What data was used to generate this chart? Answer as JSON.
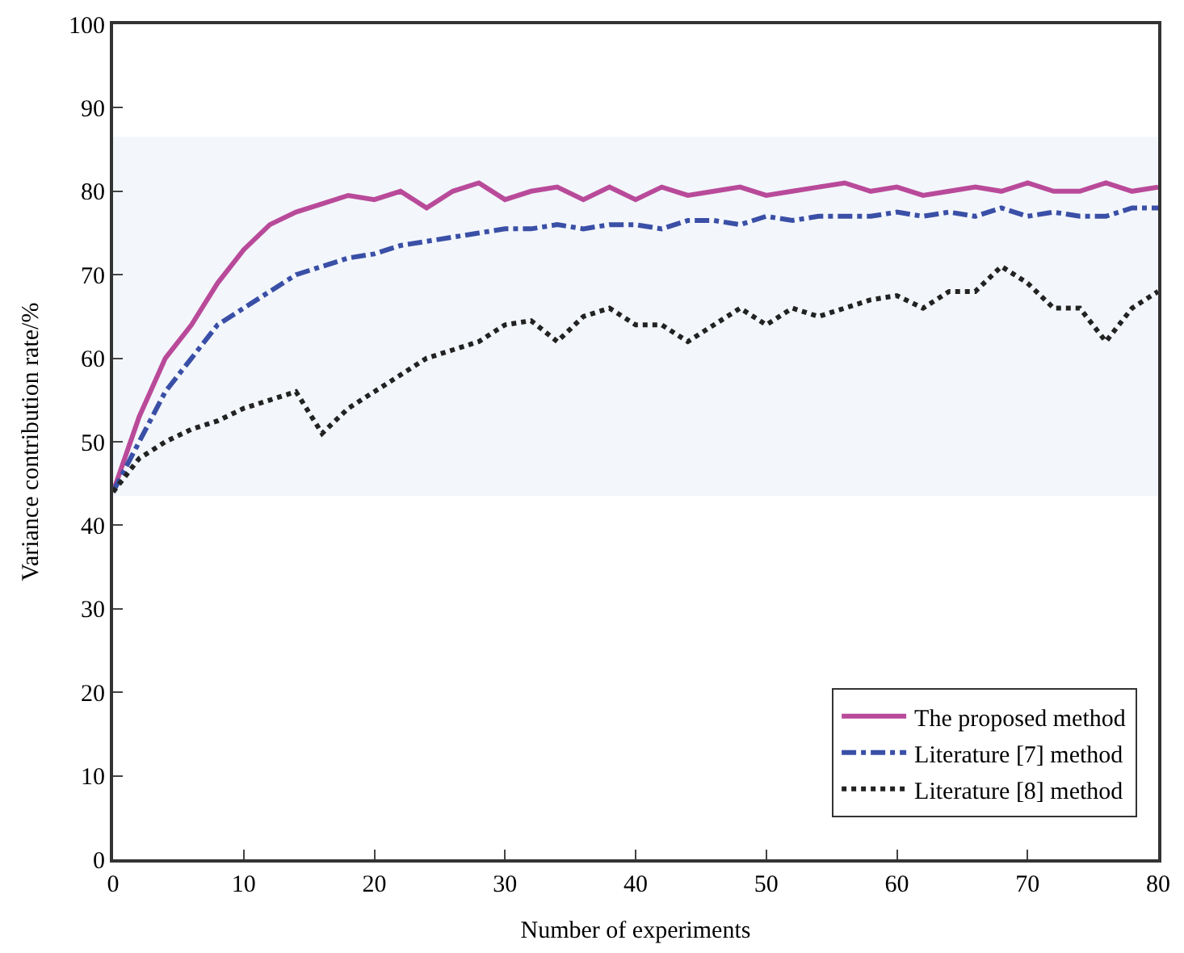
{
  "chart_data": {
    "type": "line",
    "xlabel": "Number of experiments",
    "ylabel": "Variance contribution rate/%",
    "x": [
      0,
      2,
      4,
      6,
      8,
      10,
      12,
      14,
      16,
      18,
      20,
      22,
      24,
      26,
      28,
      30,
      32,
      34,
      36,
      38,
      40,
      42,
      44,
      46,
      48,
      50,
      52,
      54,
      56,
      58,
      60,
      62,
      64,
      66,
      68,
      70,
      72,
      74,
      76,
      78,
      80
    ],
    "series": [
      {
        "name": "The proposed method",
        "color": "#b94a9a",
        "line_style": "solid",
        "values": [
          44,
          53,
          60,
          64,
          69,
          73,
          76,
          77.5,
          78.5,
          79.5,
          79,
          80,
          78,
          80,
          81,
          79,
          80,
          80.5,
          79,
          80.5,
          79,
          80.5,
          79.5,
          80,
          80.5,
          79.5,
          80,
          80.5,
          81,
          80,
          80.5,
          79.5,
          80,
          80.5,
          80,
          81,
          80,
          80,
          81,
          80,
          80.5
        ]
      },
      {
        "name": "Literature [7] method",
        "color": "#3a4fa6",
        "line_style": "dashdot",
        "values": [
          44,
          50,
          56,
          60,
          64,
          66,
          68,
          70,
          71,
          72,
          72.5,
          73.5,
          74,
          74.5,
          75,
          75.5,
          75.5,
          76,
          75.5,
          76,
          76,
          75.5,
          76.5,
          76.5,
          76,
          77,
          76.5,
          77,
          77,
          77,
          77.5,
          77,
          77.5,
          77,
          78,
          77,
          77.5,
          77,
          77,
          78,
          78
        ]
      },
      {
        "name": "Literature [8] method",
        "color": "#222222",
        "line_style": "dotted",
        "values": [
          44,
          48,
          50,
          51.5,
          52.5,
          54,
          55,
          56,
          51,
          54,
          56,
          58,
          60,
          61,
          62,
          64,
          64.5,
          62,
          65,
          66,
          64,
          64,
          62,
          64,
          66,
          64,
          66,
          65,
          66,
          67,
          67.5,
          66,
          68,
          68,
          71,
          69,
          66,
          66,
          62,
          66,
          68
        ]
      }
    ],
    "xlim": [
      0,
      80
    ],
    "xticks": [
      0,
      10,
      20,
      30,
      40,
      50,
      60,
      70,
      80
    ],
    "ylim": [
      0,
      100
    ],
    "yticks": [
      0,
      10,
      20,
      30,
      40,
      50,
      60,
      70,
      80,
      90,
      100
    ],
    "bands": [
      {
        "axis": "y",
        "from": 43.5,
        "to": 86.5,
        "color": "#f3f6fb"
      }
    ],
    "grid": false,
    "legend": "bottom right",
    "marker": "none"
  }
}
